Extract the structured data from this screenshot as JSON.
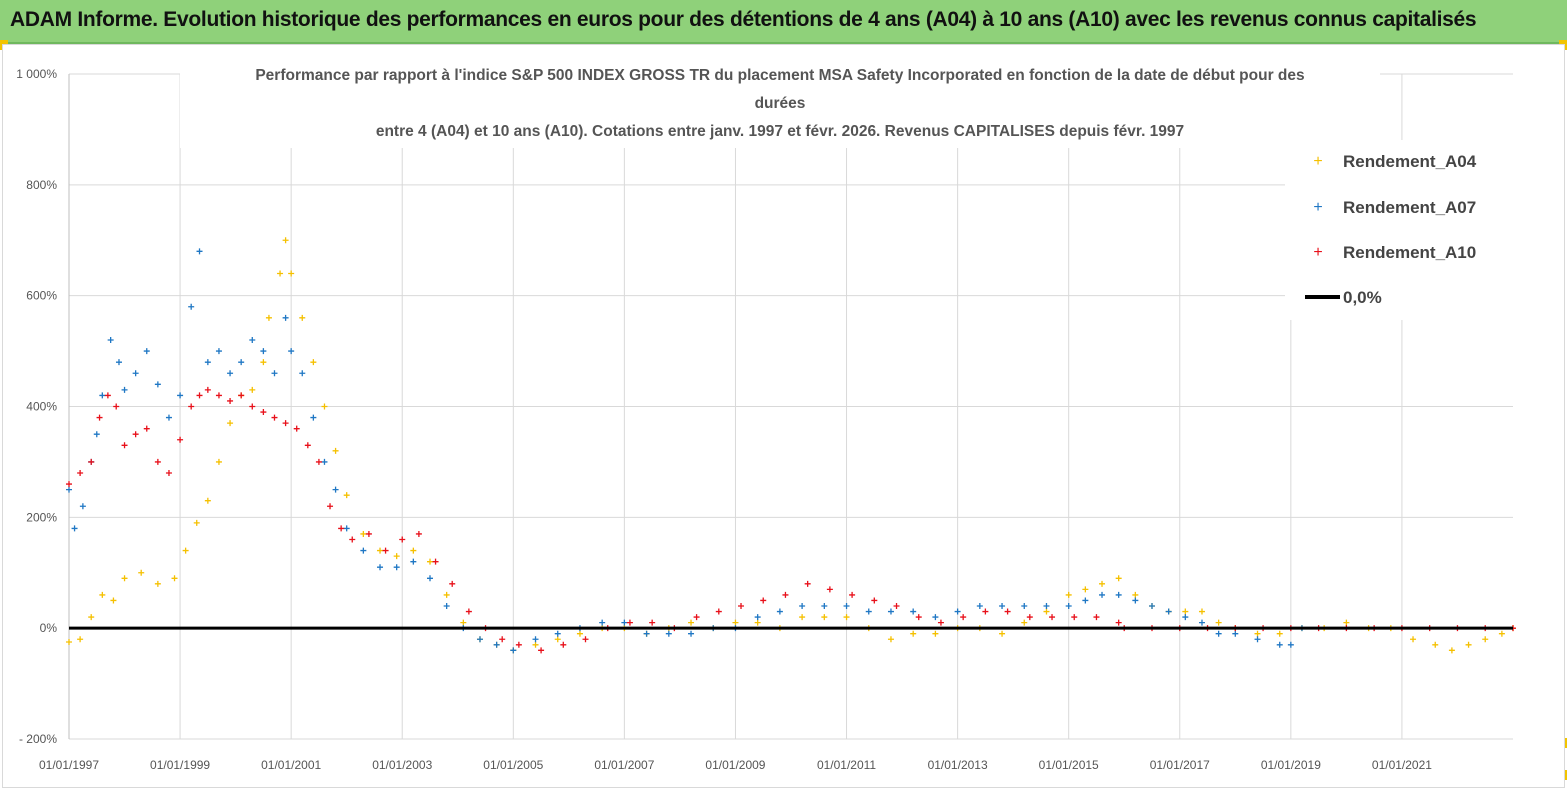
{
  "header": {
    "banner_text": "ADAM Informe. Evolution historique des performances en euros pour des détentions de 4 ans (A04) à 10 ans (A10) avec les revenus connus capitalisés"
  },
  "colors": {
    "banner_bg": "#8fd17a",
    "a04": "#f5c000",
    "a07": "#1f77c4",
    "a10": "#e8101a",
    "zero": "#000000"
  },
  "chart_data": {
    "type": "scatter",
    "title_lines": [
      "Performance par rapport à l'indice S&P 500 INDEX GROSS TR  du placement MSA Safety Incorporated en fonction de la date de début pour des",
      "durées",
      "entre 4 (A04) et 10 ans (A10). Cotations entre janv. 1997 et févr. 2026. Revenus CAPITALISES depuis févr. 1997"
    ],
    "x_range": [
      1997.0,
      2023.0
    ],
    "ylim": [
      -200,
      1000
    ],
    "y_ticks": [
      -200,
      0,
      200,
      400,
      600,
      800,
      1000
    ],
    "y_tick_labels": [
      "- 200%",
      "0%",
      "200%",
      "400%",
      "600%",
      "800%",
      "1 000%"
    ],
    "x_ticks": [
      1997,
      1999,
      2001,
      2003,
      2005,
      2007,
      2009,
      2011,
      2013,
      2015,
      2017,
      2019,
      2021
    ],
    "x_tick_labels": [
      "01/01/1997",
      "01/01/1999",
      "01/01/2001",
      "01/01/2003",
      "01/01/2005",
      "01/01/2007",
      "01/01/2009",
      "01/01/2011",
      "01/01/2013",
      "01/01/2015",
      "01/01/2017",
      "01/01/2019",
      "01/01/2021"
    ],
    "legend": {
      "position": "top-right",
      "entries": [
        "Rendement_A04",
        "Rendement_A07",
        "Rendement_A10",
        "0,0%"
      ]
    },
    "series": [
      {
        "name": "Rendement_A04",
        "x": [
          1997.0,
          1997.2,
          1997.4,
          1997.6,
          1997.8,
          1998.0,
          1998.3,
          1998.6,
          1998.9,
          1999.1,
          1999.3,
          1999.5,
          1999.7,
          1999.9,
          2000.1,
          2000.3,
          2000.5,
          2000.6,
          2000.8,
          2000.9,
          2001.0,
          2001.2,
          2001.4,
          2001.6,
          2001.8,
          2002.0,
          2002.3,
          2002.6,
          2002.9,
          2003.2,
          2003.5,
          2003.8,
          2004.1,
          2004.4,
          2004.7,
          2005.0,
          2005.4,
          2005.8,
          2006.2,
          2006.6,
          2007.0,
          2007.4,
          2007.8,
          2008.2,
          2008.6,
          2009.0,
          2009.4,
          2009.8,
          2010.2,
          2010.6,
          2011.0,
          2011.4,
          2011.8,
          2012.2,
          2012.6,
          2013.0,
          2013.4,
          2013.8,
          2014.2,
          2014.6,
          2015.0,
          2015.3,
          2015.6,
          2015.9,
          2016.2,
          2016.5,
          2016.8,
          2017.1,
          2017.4,
          2017.7,
          2018.0,
          2018.4,
          2018.8,
          2019.2,
          2019.6,
          2020.0,
          2020.4,
          2020.8,
          2021.2,
          2021.6,
          2021.9,
          2022.2,
          2022.5,
          2022.8,
          2023.0
        ],
        "y": [
          -25,
          -20,
          20,
          60,
          50,
          90,
          100,
          80,
          90,
          140,
          190,
          230,
          300,
          370,
          420,
          430,
          480,
          560,
          640,
          700,
          640,
          560,
          480,
          400,
          320,
          240,
          170,
          140,
          130,
          140,
          120,
          60,
          10,
          -20,
          -30,
          -40,
          -30,
          -20,
          -10,
          0,
          0,
          -10,
          0,
          10,
          0,
          10,
          10,
          0,
          20,
          20,
          20,
          0,
          -20,
          -10,
          -10,
          0,
          0,
          -10,
          10,
          30,
          60,
          70,
          80,
          90,
          60,
          40,
          30,
          30,
          30,
          10,
          0,
          -10,
          -10,
          0,
          0,
          10,
          0,
          0,
          -20,
          -30,
          -40,
          -30,
          -20,
          -10,
          0
        ]
      },
      {
        "name": "Rendement_A07",
        "x": [
          1997.0,
          1997.1,
          1997.25,
          1997.4,
          1997.5,
          1997.6,
          1997.75,
          1997.9,
          1998.0,
          1998.2,
          1998.4,
          1998.6,
          1998.8,
          1999.0,
          1999.2,
          1999.35,
          1999.5,
          1999.7,
          1999.9,
          2000.1,
          2000.3,
          2000.5,
          2000.7,
          2000.9,
          2001.0,
          2001.2,
          2001.4,
          2001.6,
          2001.8,
          2002.0,
          2002.3,
          2002.6,
          2002.9,
          2003.2,
          2003.5,
          2003.8,
          2004.1,
          2004.4,
          2004.7,
          2005.0,
          2005.4,
          2005.8,
          2006.2,
          2006.6,
          2007.0,
          2007.4,
          2007.8,
          2008.2,
          2008.6,
          2009.0,
          2009.4,
          2009.8,
          2010.2,
          2010.6,
          2011.0,
          2011.4,
          2011.8,
          2012.2,
          2012.6,
          2013.0,
          2013.4,
          2013.8,
          2014.2,
          2014.6,
          2015.0,
          2015.3,
          2015.6,
          2015.9,
          2016.2,
          2016.5,
          2016.8,
          2017.1,
          2017.4,
          2017.7,
          2018.0,
          2018.4,
          2018.8,
          2019.0,
          2019.2
        ],
        "y": [
          250,
          180,
          220,
          300,
          350,
          420,
          520,
          480,
          430,
          460,
          500,
          440,
          380,
          420,
          580,
          680,
          480,
          500,
          460,
          480,
          520,
          500,
          460,
          560,
          500,
          460,
          380,
          300,
          250,
          180,
          140,
          110,
          110,
          120,
          90,
          40,
          0,
          -20,
          -30,
          -40,
          -20,
          -10,
          0,
          10,
          10,
          -10,
          -10,
          -10,
          0,
          0,
          20,
          30,
          40,
          40,
          40,
          30,
          30,
          30,
          20,
          30,
          40,
          40,
          40,
          40,
          40,
          50,
          60,
          60,
          50,
          40,
          30,
          20,
          10,
          -10,
          -10,
          -20,
          -30,
          -30,
          0
        ]
      },
      {
        "name": "Rendement_A10",
        "x": [
          1997.0,
          1997.2,
          1997.4,
          1997.55,
          1997.7,
          1997.85,
          1998.0,
          1998.2,
          1998.4,
          1998.6,
          1998.8,
          1999.0,
          1999.2,
          1999.35,
          1999.5,
          1999.7,
          1999.9,
          2000.1,
          2000.3,
          2000.5,
          2000.7,
          2000.9,
          2001.1,
          2001.3,
          2001.5,
          2001.7,
          2001.9,
          2002.1,
          2002.4,
          2002.7,
          2003.0,
          2003.3,
          2003.6,
          2003.9,
          2004.2,
          2004.5,
          2004.8,
          2005.1,
          2005.5,
          2005.9,
          2006.3,
          2006.7,
          2007.1,
          2007.5,
          2007.9,
          2008.3,
          2008.7,
          2009.1,
          2009.5,
          2009.9,
          2010.3,
          2010.7,
          2011.1,
          2011.5,
          2011.9,
          2012.3,
          2012.7,
          2013.1,
          2013.5,
          2013.9,
          2014.3,
          2014.7,
          2015.1,
          2015.5,
          2015.9,
          2016.0,
          2016.5,
          2017.0,
          2017.5,
          2018.0,
          2018.5,
          2019.0,
          2019.5,
          2020.0,
          2020.5,
          2021.0,
          2021.5,
          2022.0,
          2022.5,
          2023.0
        ],
        "y": [
          260,
          280,
          300,
          380,
          420,
          400,
          330,
          350,
          360,
          300,
          280,
          340,
          400,
          420,
          430,
          420,
          410,
          420,
          400,
          390,
          380,
          370,
          360,
          330,
          300,
          220,
          180,
          160,
          170,
          140,
          160,
          170,
          120,
          80,
          30,
          0,
          -20,
          -30,
          -40,
          -30,
          -20,
          0,
          10,
          10,
          0,
          20,
          30,
          40,
          50,
          60,
          80,
          70,
          60,
          50,
          40,
          20,
          10,
          20,
          30,
          30,
          20,
          20,
          20,
          20,
          10,
          0,
          0,
          0,
          0,
          0,
          0,
          0,
          0,
          0,
          0,
          0,
          0,
          0,
          0,
          0
        ]
      },
      {
        "name": "0,0%",
        "x": [
          1997.0,
          2023.0
        ],
        "y": [
          0,
          0
        ]
      }
    ]
  }
}
